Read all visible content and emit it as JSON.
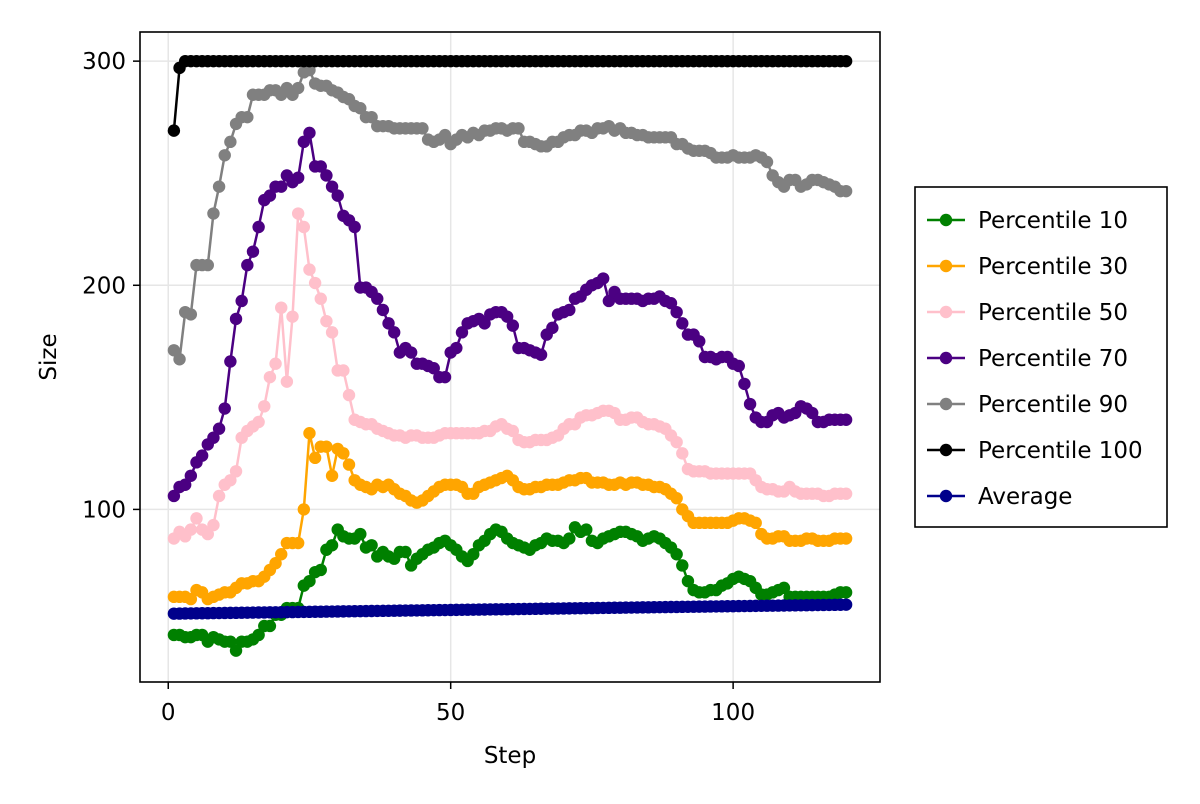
{
  "chart_data": {
    "type": "line",
    "xlabel": "Step",
    "ylabel": "Size",
    "xlim": [
      -5,
      126
    ],
    "ylim": [
      23,
      313
    ],
    "xticks": [
      0,
      50,
      100
    ],
    "yticks": [
      100,
      200,
      300
    ],
    "grid": true,
    "legend_position": "right",
    "series": [
      {
        "name": "Percentile 10",
        "color": "#008000",
        "y": [
          44,
          44,
          43,
          43,
          44,
          44,
          41,
          43,
          42,
          41,
          41,
          37,
          41,
          41,
          42,
          44,
          48,
          48,
          53,
          53,
          56,
          56,
          56,
          66,
          68,
          72,
          73,
          82,
          84,
          91,
          88,
          87,
          87,
          89,
          83,
          84,
          79,
          81,
          79,
          78,
          81,
          81,
          75,
          78,
          80,
          82,
          83,
          85,
          86,
          84,
          82,
          79,
          77,
          80,
          84,
          86,
          89,
          91,
          90,
          87,
          85,
          84,
          83,
          82,
          84,
          85,
          87,
          86,
          86,
          85,
          87,
          92,
          90,
          91,
          86,
          85,
          87,
          88,
          89,
          90,
          90,
          89,
          88,
          86,
          87,
          88,
          87,
          85,
          83,
          80,
          75,
          68,
          64,
          63,
          63,
          64,
          64,
          66,
          67,
          69,
          70,
          69,
          68,
          65,
          62,
          62,
          63,
          64,
          65,
          61,
          61,
          61,
          61,
          61,
          61,
          61,
          61,
          62,
          63,
          63
        ]
      },
      {
        "name": "Percentile 30",
        "color": "#FFA500",
        "y": [
          61,
          61,
          61,
          60,
          64,
          63,
          60,
          61,
          62,
          63,
          63,
          65,
          67,
          67,
          68,
          68,
          70,
          73,
          76,
          80,
          85,
          85,
          85,
          100,
          134,
          123,
          128,
          128,
          115,
          127,
          125,
          120,
          113,
          111,
          110,
          109,
          111,
          110,
          111,
          109,
          107,
          106,
          104,
          103,
          104,
          106,
          108,
          110,
          111,
          111,
          111,
          110,
          107,
          107,
          110,
          111,
          112,
          113,
          114,
          115,
          113,
          110,
          109,
          109,
          110,
          110,
          111,
          111,
          111,
          112,
          113,
          113,
          114,
          114,
          112,
          112,
          112,
          111,
          111,
          112,
          111,
          112,
          112,
          111,
          111,
          110,
          110,
          109,
          107,
          105,
          100,
          97,
          94,
          94,
          94,
          94,
          94,
          94,
          94,
          95,
          96,
          96,
          95,
          94,
          89,
          87,
          87,
          88,
          88,
          86,
          86,
          86,
          87,
          87,
          86,
          86,
          86,
          87,
          87,
          87
        ]
      },
      {
        "name": "Percentile 50",
        "color": "#FFC0CB",
        "y": [
          87,
          90,
          88,
          91,
          96,
          91,
          89,
          93,
          106,
          111,
          113,
          117,
          132,
          135,
          137,
          139,
          146,
          159,
          165,
          190,
          157,
          186,
          232,
          226,
          207,
          201,
          194,
          184,
          179,
          162,
          162,
          151,
          140,
          139,
          138,
          138,
          136,
          135,
          134,
          133,
          133,
          132,
          133,
          133,
          132,
          132,
          132,
          133,
          134,
          134,
          134,
          134,
          134,
          134,
          134,
          135,
          135,
          137,
          138,
          136,
          135,
          131,
          130,
          130,
          131,
          131,
          131,
          132,
          133,
          136,
          138,
          138,
          141,
          142,
          142,
          143,
          144,
          144,
          143,
          140,
          140,
          141,
          141,
          139,
          138,
          138,
          137,
          136,
          133,
          130,
          125,
          118,
          117,
          117,
          117,
          116,
          116,
          116,
          116,
          116,
          116,
          116,
          116,
          113,
          110,
          109,
          109,
          108,
          108,
          110,
          108,
          107,
          107,
          107,
          107,
          106,
          106,
          107,
          107,
          107
        ]
      },
      {
        "name": "Percentile 70",
        "color": "#4B0082",
        "y": [
          106,
          110,
          111,
          115,
          121,
          124,
          129,
          132,
          136,
          145,
          166,
          185,
          193,
          209,
          215,
          226,
          238,
          240,
          244,
          244,
          249,
          246,
          248,
          264,
          268,
          253,
          253,
          249,
          244,
          240,
          231,
          229,
          226,
          199,
          199,
          197,
          194,
          189,
          183,
          179,
          170,
          172,
          170,
          165,
          165,
          164,
          163,
          159,
          159,
          170,
          172,
          179,
          183,
          184,
          185,
          183,
          187,
          188,
          188,
          186,
          182,
          172,
          172,
          171,
          170,
          169,
          178,
          181,
          187,
          188,
          189,
          194,
          195,
          198,
          200,
          201,
          203,
          193,
          197,
          194,
          194,
          194,
          194,
          193,
          194,
          194,
          195,
          193,
          192,
          188,
          183,
          178,
          178,
          175,
          168,
          168,
          167,
          168,
          168,
          165,
          164,
          156,
          147,
          141,
          139,
          139,
          142,
          143,
          141,
          142,
          143,
          146,
          145,
          143,
          139,
          139,
          140,
          140,
          140,
          140
        ]
      },
      {
        "name": "Percentile 90",
        "color": "#808080",
        "y": [
          171,
          167,
          188,
          187,
          209,
          209,
          209,
          232,
          244,
          258,
          264,
          272,
          275,
          275,
          285,
          285,
          285,
          287,
          287,
          285,
          288,
          285,
          288,
          295,
          296,
          290,
          289,
          289,
          287,
          286,
          284,
          283,
          280,
          279,
          275,
          275,
          271,
          271,
          271,
          270,
          270,
          270,
          270,
          270,
          270,
          265,
          264,
          265,
          267,
          263,
          265,
          267,
          266,
          268,
          267,
          269,
          269,
          270,
          270,
          269,
          270,
          270,
          264,
          264,
          263,
          262,
          262,
          264,
          264,
          266,
          267,
          267,
          269,
          269,
          268,
          270,
          270,
          271,
          269,
          270,
          268,
          268,
          267,
          267,
          266,
          266,
          266,
          266,
          266,
          263,
          263,
          261,
          260,
          260,
          260,
          259,
          257,
          257,
          257,
          258,
          257,
          257,
          257,
          258,
          257,
          255,
          249,
          246,
          244,
          247,
          247,
          244,
          245,
          247,
          247,
          246,
          245,
          244,
          242,
          242
        ]
      },
      {
        "name": "Percentile 100",
        "color": "#000000",
        "y": [
          269,
          297,
          300,
          300,
          300,
          300,
          300,
          300,
          300,
          300,
          300,
          300,
          300,
          300,
          300,
          300,
          300,
          300,
          300,
          300,
          300,
          300,
          300,
          300,
          300,
          300,
          300,
          300,
          300,
          300,
          300,
          300,
          300,
          300,
          300,
          300,
          300,
          300,
          300,
          300,
          300,
          300,
          300,
          300,
          300,
          300,
          300,
          300,
          300,
          300,
          300,
          300,
          300,
          300,
          300,
          300,
          300,
          300,
          300,
          300,
          300,
          300,
          300,
          300,
          300,
          300,
          300,
          300,
          300,
          300,
          300,
          300,
          300,
          300,
          300,
          300,
          300,
          300,
          300,
          300,
          300,
          300,
          300,
          300,
          300,
          300,
          300,
          300,
          300,
          300,
          300,
          300,
          300,
          300,
          300,
          300,
          300,
          300,
          300,
          300,
          300,
          300,
          300,
          300,
          300,
          300,
          300,
          300,
          300,
          300,
          300,
          300,
          300,
          300,
          300,
          300,
          300,
          300,
          300,
          300
        ]
      },
      {
        "name": "Average",
        "color": "#00008B",
        "y_start": 53.5,
        "y_end": 57.5,
        "count": 120
      }
    ]
  }
}
